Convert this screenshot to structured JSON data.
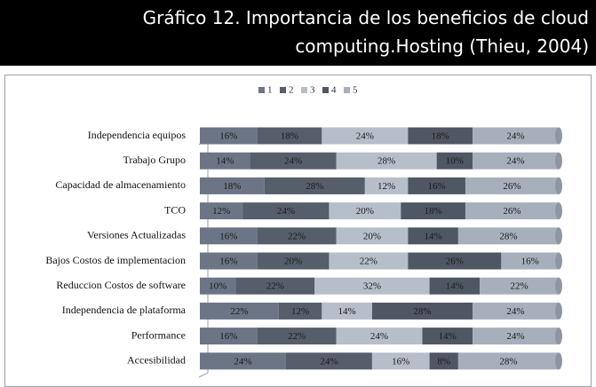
{
  "header": {
    "title_lines": [
      "Gráfico 12. Importancia de los beneficios de cloud",
      "computing.Hosting  (Thieu, 2004)"
    ]
  },
  "chart_data": {
    "type": "stacked-bar-horizontal",
    "categories": [
      "Independencia equipos",
      "Trabajo Grupo",
      "Capacidad de almacenamiento",
      "TCO",
      "Versiones Actualizadas",
      "Bajos Costos de implementacion",
      "Reduccion Costos de software",
      "Independencia de plataforma",
      "Performance",
      "Accesibilidad"
    ],
    "xlim": [
      0,
      100
    ],
    "legend": "top",
    "series": [
      {
        "name": "1",
        "color": "#6b7585",
        "values": [
          16,
          14,
          18,
          12,
          16,
          16,
          10,
          22,
          16,
          24
        ],
        "value_labels": [
          "16%",
          "14%",
          "18%",
          "12%",
          "16%",
          "16%",
          "10%",
          "22%",
          "16%",
          "24%"
        ]
      },
      {
        "name": "2",
        "color": "#565e6b",
        "values": [
          18,
          24,
          28,
          24,
          22,
          20,
          22,
          12,
          22,
          24
        ],
        "value_labels": [
          "18%",
          "24%",
          "28%",
          "24%",
          "22%",
          "20%",
          "22%",
          "12%",
          "22%",
          "24%"
        ]
      },
      {
        "name": "3",
        "color": "#b6bec9",
        "values": [
          24,
          28,
          12,
          20,
          20,
          22,
          32,
          14,
          24,
          16
        ],
        "value_labels": [
          "24%",
          "28%",
          "12%",
          "20%",
          "20%",
          "22%",
          "32%",
          "14%",
          "24%",
          "16%"
        ]
      },
      {
        "name": "4",
        "color": "#4f5764",
        "values": [
          18,
          10,
          16,
          18,
          14,
          26,
          14,
          28,
          14,
          8
        ],
        "value_labels": [
          "18%",
          "10%",
          "16%",
          "18%",
          "14%",
          "26%",
          "14%",
          "28%",
          "14%",
          "8%"
        ]
      },
      {
        "name": "5",
        "color": "#a6afbb",
        "values": [
          24,
          24,
          26,
          26,
          28,
          16,
          22,
          24,
          24,
          28
        ],
        "value_labels": [
          "24%",
          "24%",
          "26%",
          "26%",
          "28%",
          "16%",
          "22%",
          "24%",
          "24%",
          "28%"
        ]
      }
    ]
  }
}
